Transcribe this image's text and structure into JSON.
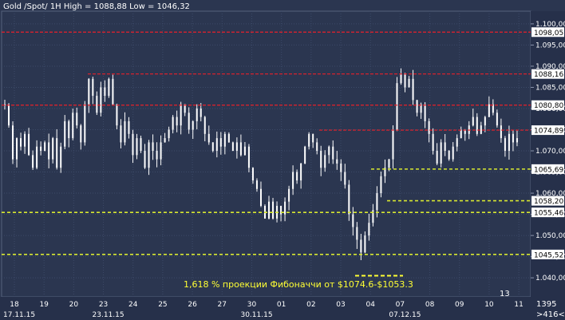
{
  "header": "Gold /Spot/ 1H High = 1088,88 Low = 1046,32",
  "badge": "13",
  "corner_top": "1395",
  "corner_bottom": ">416<",
  "colors": {
    "background": "#2b3650",
    "grid": "#3c4a68",
    "candle": "#ffffff",
    "resistance": "#e8202a",
    "support": "#d8e830",
    "annotation": "#ffff33"
  },
  "chart_data": {
    "type": "line",
    "instrument": "Gold /Spot/ 1H",
    "high": "1088,88",
    "low": "1046,32",
    "ylim": [
      1035.5,
      1103
    ],
    "y_ticks": [
      "1.040,00",
      "1.045,00",
      "1.050,00",
      "1.055,00",
      "1.060,00",
      "1.065,00",
      "1.070,00",
      "1.075,00",
      "1.080,00",
      "1.085,00",
      "1.090,00",
      "1.095,00",
      "1.100,00"
    ],
    "x_ticks": [
      "18",
      "19",
      "20",
      "23",
      "24",
      "25",
      "26",
      "27",
      "30",
      "01",
      "02",
      "03",
      "04",
      "07",
      "08",
      "09",
      "10",
      "11"
    ],
    "date_labels": [
      "17.11.15",
      "23.11.15",
      "30.11.15",
      "07.12.15"
    ],
    "resistance_levels": [
      {
        "value": 1098.05,
        "label": "1098,05"
      },
      {
        "value": 1088.16,
        "label": "1088,16"
      },
      {
        "value": 1080.8,
        "label": "1080,80"
      },
      {
        "value": 1074.89,
        "label": "1074,89"
      }
    ],
    "support_levels": [
      {
        "value": 1065.69,
        "label": "1065,69"
      },
      {
        "value": 1058.2,
        "label": "1058,20"
      },
      {
        "value": 1055.46,
        "label": "1055,46"
      },
      {
        "value": 1045.52,
        "label": "1045,52"
      }
    ],
    "fib_target": 1040.5,
    "annotation": "1,618 % проекции Фибоначчи от $1074.6-$1053.3",
    "series": [
      {
        "values": [
          1081,
          1076,
          1068,
          1073,
          1071,
          1074,
          1069,
          1066,
          1071,
          1070,
          1072,
          1068,
          1073,
          1066,
          1071,
          1077,
          1073,
          1079,
          1076,
          1072,
          1081,
          1087,
          1083,
          1079,
          1085,
          1083,
          1087,
          1081,
          1076,
          1072,
          1077,
          1074,
          1069,
          1073,
          1070,
          1066,
          1072,
          1070,
          1068,
          1072,
          1073,
          1075,
          1078,
          1076,
          1081,
          1079,
          1075,
          1077,
          1080,
          1078,
          1074,
          1072,
          1070,
          1073,
          1071,
          1074,
          1072,
          1070,
          1072,
          1069,
          1071,
          1066,
          1063,
          1061,
          1057,
          1054,
          1058,
          1054,
          1057,
          1055,
          1058,
          1061,
          1065,
          1063,
          1067,
          1071,
          1074,
          1072,
          1070,
          1066,
          1069,
          1071,
          1068,
          1067,
          1065,
          1062,
          1055,
          1052,
          1049,
          1046,
          1050,
          1053,
          1056,
          1060,
          1064,
          1066,
          1068,
          1075,
          1086,
          1088,
          1085,
          1087,
          1082,
          1079,
          1081,
          1077,
          1074,
          1070,
          1067,
          1072,
          1070,
          1068,
          1071,
          1073,
          1075,
          1074,
          1076,
          1078,
          1074,
          1076,
          1078,
          1081,
          1079,
          1076,
          1073,
          1070,
          1074,
          1072,
          1073
        ]
      }
    ]
  }
}
